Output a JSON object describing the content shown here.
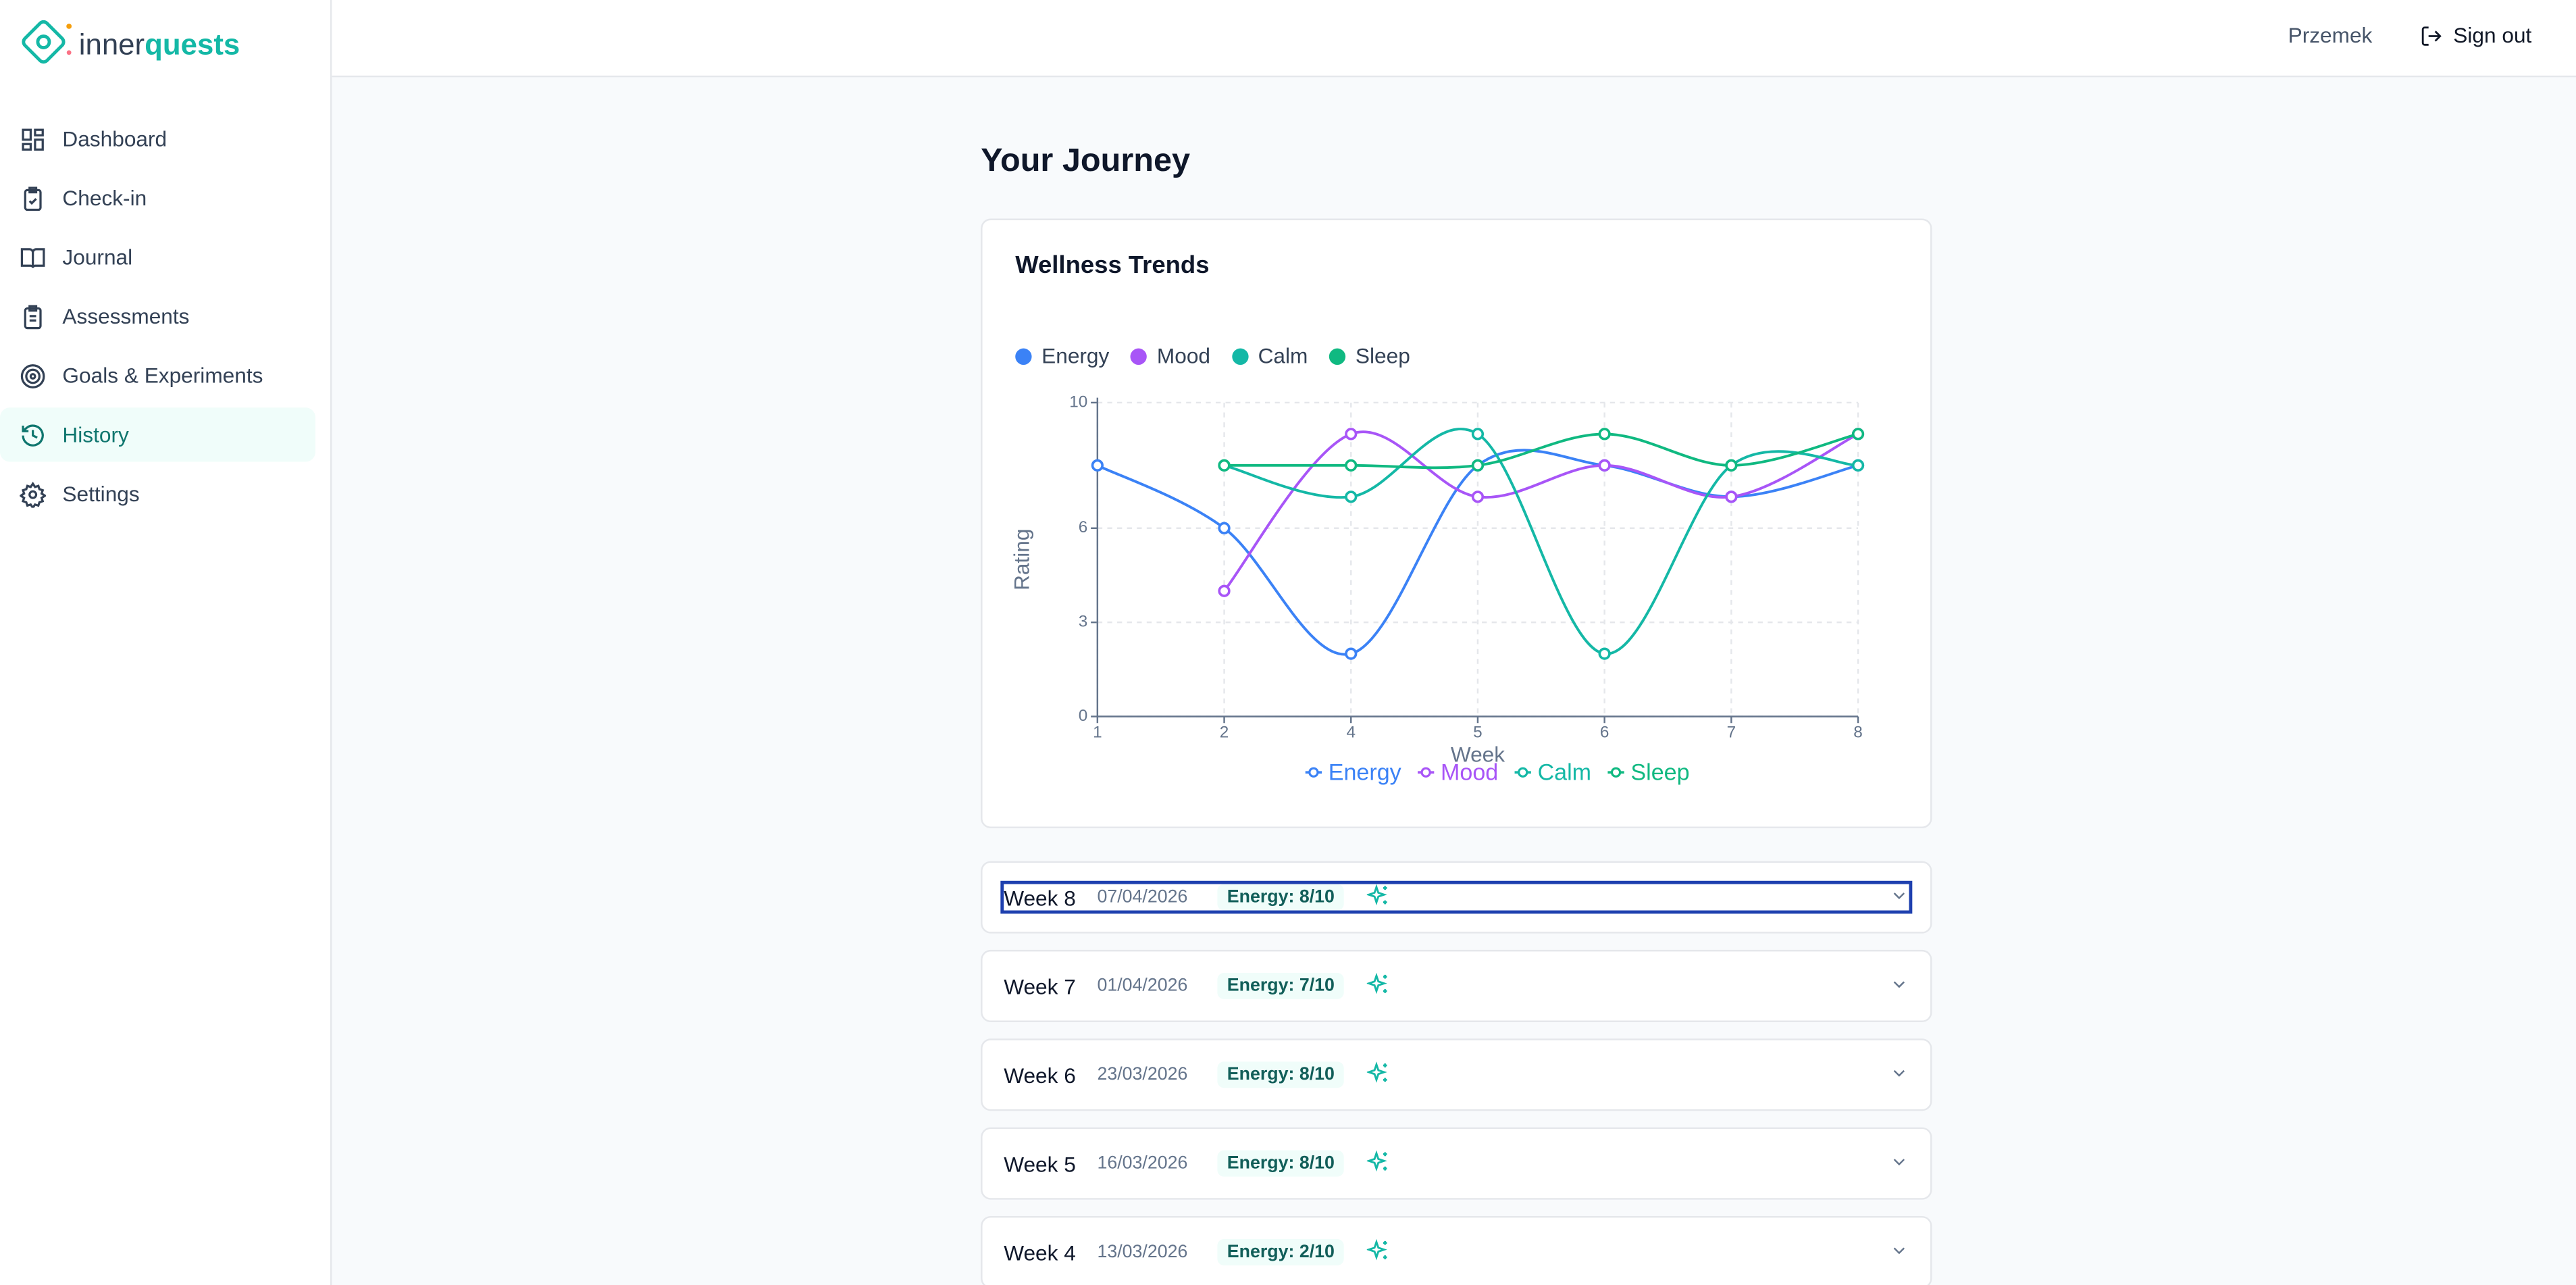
{
  "brand": {
    "part1": "inner",
    "part2": "quests"
  },
  "nav": [
    "Dashboard",
    "Check-in",
    "Journal",
    "Assessments",
    "Goals & Experiments",
    "History",
    "Settings"
  ],
  "header": {
    "user": "Przemek",
    "signout": "Sign out"
  },
  "page_title": "Your Journey",
  "chart_data": {
    "type": "line",
    "title": "Wellness Trends",
    "x_label": "Week",
    "y_label": "Rating",
    "categories": [
      "1",
      "2",
      "4",
      "5",
      "6",
      "7",
      "8"
    ],
    "series": [
      {
        "name": "Energy",
        "color": "#3b82f6",
        "values": [
          8,
          6,
          2,
          8,
          8,
          7,
          8
        ]
      },
      {
        "name": "Mood",
        "color": "#a855f7",
        "values": [
          null,
          4,
          9,
          7,
          8,
          7,
          9
        ]
      },
      {
        "name": "Calm",
        "color": "#14b8a6",
        "values": [
          null,
          8,
          7,
          9,
          2,
          8,
          8
        ]
      },
      {
        "name": "Sleep",
        "color": "#10b981",
        "values": [
          null,
          8,
          8,
          8,
          9,
          8,
          9
        ]
      }
    ],
    "ylim": [
      0,
      10
    ],
    "yticks": [
      0,
      3,
      6,
      10
    ],
    "grid": true,
    "legend": "top"
  },
  "weeks": [
    {
      "name": "Week 8",
      "date": "07/04/2026",
      "badge": "Energy: 8/10"
    },
    {
      "name": "Week 7",
      "date": "01/04/2026",
      "badge": "Energy: 7/10"
    },
    {
      "name": "Week 6",
      "date": "23/03/2026",
      "badge": "Energy: 8/10"
    },
    {
      "name": "Week 5",
      "date": "16/03/2026",
      "badge": "Energy: 8/10"
    },
    {
      "name": "Week 4",
      "date": "13/03/2026",
      "badge": "Energy: 2/10"
    }
  ]
}
